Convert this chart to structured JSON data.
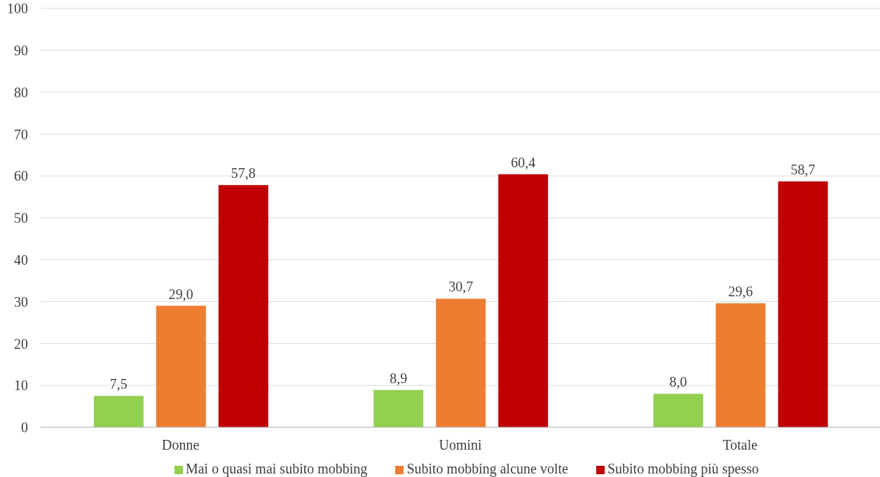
{
  "chart_data": {
    "type": "bar",
    "categories": [
      "Donne",
      "Uomini",
      "Totale"
    ],
    "series": [
      {
        "name": "Mai o quasi mai subito mobbing",
        "color": "#92d050",
        "values": [
          7.5,
          8.9,
          8.0
        ],
        "value_labels": [
          "7,5",
          "8,9",
          "8,0"
        ]
      },
      {
        "name": "Subito mobbing alcune volte",
        "color": "#ed7d31",
        "values": [
          29.0,
          30.7,
          29.6
        ],
        "value_labels": [
          "29,0",
          "30,7",
          "29,6"
        ]
      },
      {
        "name": "Subito mobbing più spesso",
        "color": "#c00000",
        "values": [
          57.8,
          60.4,
          58.7
        ],
        "value_labels": [
          "57,8",
          "60,4",
          "58,7"
        ]
      }
    ],
    "ylim": [
      0,
      100
    ],
    "yticks": [
      0,
      10,
      20,
      30,
      40,
      50,
      60,
      70,
      80,
      90,
      100
    ],
    "grid": "y",
    "legend": "bottom"
  }
}
